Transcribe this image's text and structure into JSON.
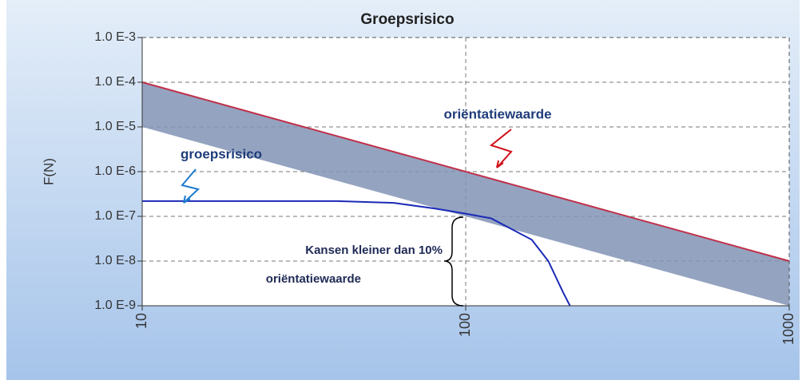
{
  "chart_data": {
    "type": "line",
    "title": "Groepsrisico",
    "y_label": "F(N)",
    "xlog": true,
    "ylog": true,
    "grid": true,
    "xlim": [
      10,
      1000
    ],
    "xticks": [
      10,
      100,
      1000
    ],
    "ylim": [
      1e-09,
      0.001
    ],
    "yticks": [
      {
        "value": 1e-09,
        "label": "1.0 E-9"
      },
      {
        "value": 1e-08,
        "label": "1.0 E-8"
      },
      {
        "value": 1e-07,
        "label": "1.0 E-7"
      },
      {
        "value": 1e-06,
        "label": "1.0 E-6"
      },
      {
        "value": 1e-05,
        "label": "1.0 E-5"
      },
      {
        "value": 0.0001,
        "label": "1.0 E-4"
      },
      {
        "value": 0.001,
        "label": "1.0 E-3"
      }
    ],
    "band_color": "#8193b5",
    "series": [
      {
        "name": "oriëntatiewaarde",
        "color": "#c0304a",
        "x": [
          10,
          1000
        ],
        "values": [
          0.0001,
          1e-08
        ]
      },
      {
        "color": "#8193b5",
        "x": [
          10,
          1000
        ],
        "values": [
          1e-05,
          1e-09
        ]
      },
      {
        "name": "groepsrisico",
        "color": "#1a2ab8",
        "x": [
          10,
          40,
          60,
          80,
          100,
          120,
          140,
          160,
          180,
          200,
          210
        ],
        "values": [
          2.2e-07,
          2.2e-07,
          2e-07,
          1.5e-07,
          1.15e-07,
          9e-08,
          5e-08,
          3e-08,
          1e-08,
          2e-09,
          1e-09
        ]
      }
    ],
    "annotation": [
      "Kansen kleiner dan 10%",
      "oriëntatiewaarde"
    ]
  }
}
